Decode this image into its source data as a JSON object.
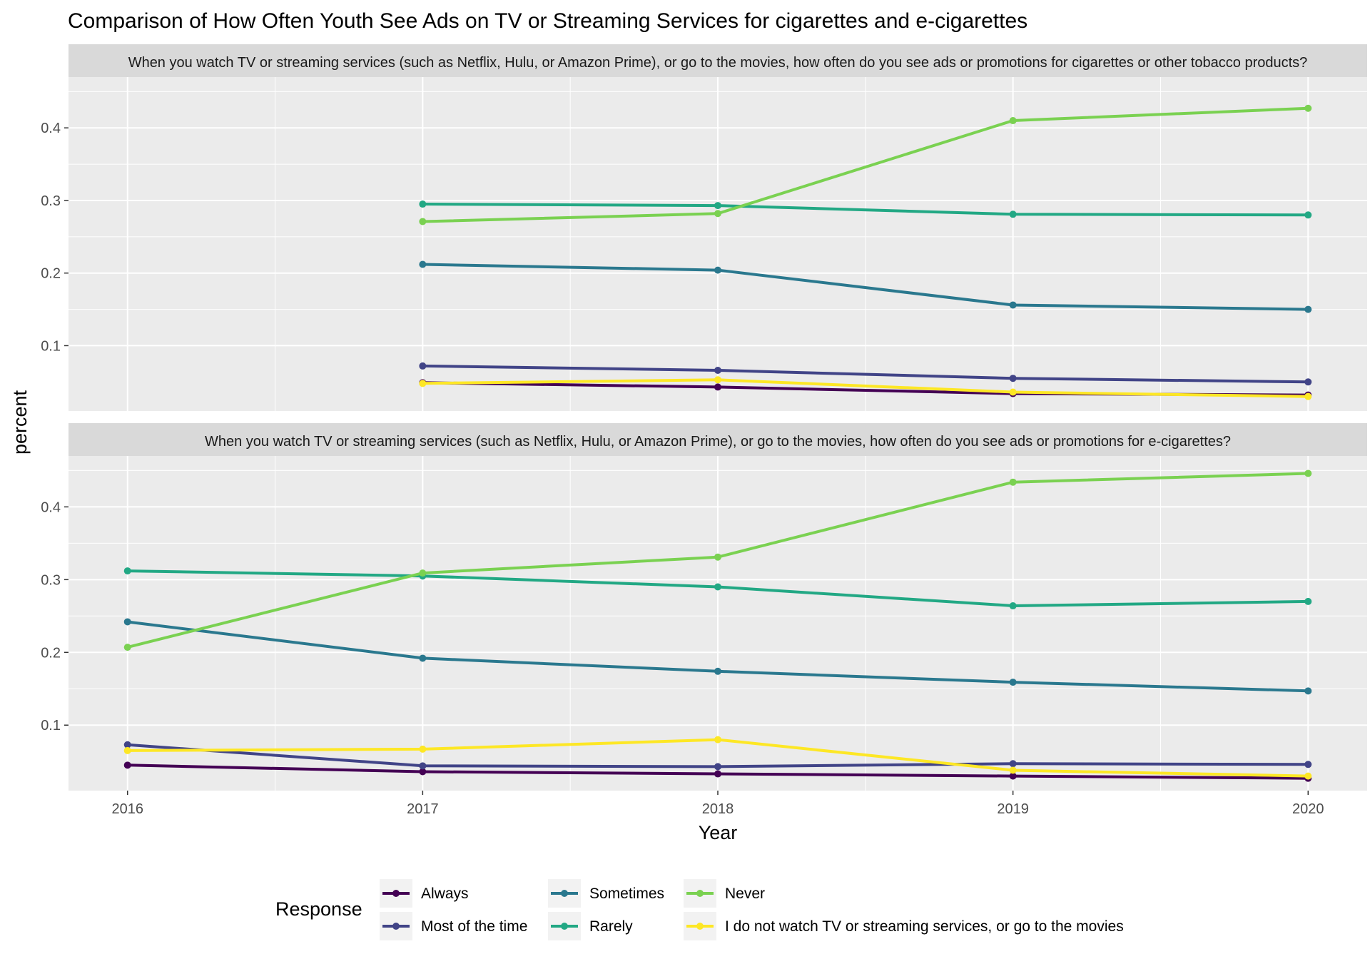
{
  "chart_data": {
    "type": "line",
    "title": "Comparison of How Often Youth See Ads on TV or Streaming Services for cigarettes and e-cigarettes",
    "xlabel": "Year",
    "ylabel": "percent",
    "x": [
      2016,
      2017,
      2018,
      2019,
      2020
    ],
    "xlim": [
      2015.8,
      2020.2
    ],
    "ylim": [
      0.01,
      0.47
    ],
    "y_ticks": [
      "0.1",
      "0.2",
      "0.3",
      "0.4"
    ],
    "grid": true,
    "legend": {
      "title": "Response",
      "position": "bottom",
      "entries": [
        {
          "label": "Always",
          "color": "#440154"
        },
        {
          "label": "Most of the time",
          "color": "#414487"
        },
        {
          "label": "Sometimes",
          "color": "#2A788E"
        },
        {
          "label": "Rarely",
          "color": "#22A884"
        },
        {
          "label": "Never",
          "color": "#7AD151"
        },
        {
          "label": "I do not watch TV or streaming services, or go to the movies",
          "color": "#FDE725"
        }
      ]
    },
    "panels": [
      {
        "strip": "When you watch TV or streaming services (such as Netflix, Hulu, or Amazon Prime), or go to the movies, how often do you see ads or promotions for cigarettes or other tobacco products?",
        "series": [
          {
            "name": "Always",
            "color": "#440154",
            "x": [
              2017,
              2018,
              2019,
              2020
            ],
            "values": [
              0.049,
              0.043,
              0.034,
              0.032
            ]
          },
          {
            "name": "Most of the time",
            "color": "#414487",
            "x": [
              2017,
              2018,
              2019,
              2020
            ],
            "values": [
              0.072,
              0.066,
              0.055,
              0.05
            ]
          },
          {
            "name": "Sometimes",
            "color": "#2A788E",
            "x": [
              2017,
              2018,
              2019,
              2020
            ],
            "values": [
              0.212,
              0.204,
              0.156,
              0.15
            ]
          },
          {
            "name": "Rarely",
            "color": "#22A884",
            "x": [
              2017,
              2018,
              2019,
              2020
            ],
            "values": [
              0.295,
              0.293,
              0.281,
              0.28
            ]
          },
          {
            "name": "Never",
            "color": "#7AD151",
            "x": [
              2017,
              2018,
              2019,
              2020
            ],
            "values": [
              0.271,
              0.282,
              0.41,
              0.427
            ]
          },
          {
            "name": "I do not watch TV or streaming services, or go to the movies",
            "color": "#FDE725",
            "x": [
              2017,
              2018,
              2019,
              2020
            ],
            "values": [
              0.048,
              0.053,
              0.036,
              0.03
            ]
          }
        ]
      },
      {
        "strip": "When you watch TV or streaming services (such as Netflix, Hulu, or Amazon Prime), or go to the movies, how often do you see ads or promotions for e-cigarettes?",
        "series": [
          {
            "name": "Always",
            "color": "#440154",
            "x": [
              2016,
              2017,
              2018,
              2019,
              2020
            ],
            "values": [
              0.045,
              0.036,
              0.033,
              0.03,
              0.027
            ]
          },
          {
            "name": "Most of the time",
            "color": "#414487",
            "x": [
              2016,
              2017,
              2018,
              2019,
              2020
            ],
            "values": [
              0.073,
              0.044,
              0.043,
              0.047,
              0.046
            ]
          },
          {
            "name": "Sometimes",
            "color": "#2A788E",
            "x": [
              2016,
              2017,
              2018,
              2019,
              2020
            ],
            "values": [
              0.242,
              0.192,
              0.174,
              0.159,
              0.147
            ]
          },
          {
            "name": "Rarely",
            "color": "#22A884",
            "x": [
              2016,
              2017,
              2018,
              2019,
              2020
            ],
            "values": [
              0.312,
              0.305,
              0.29,
              0.264,
              0.27
            ]
          },
          {
            "name": "Never",
            "color": "#7AD151",
            "x": [
              2016,
              2017,
              2018,
              2019,
              2020
            ],
            "values": [
              0.207,
              0.309,
              0.331,
              0.434,
              0.446
            ]
          },
          {
            "name": "I do not watch TV or streaming services, or go to the movies",
            "color": "#FDE725",
            "x": [
              2016,
              2017,
              2018,
              2019,
              2020
            ],
            "values": [
              0.065,
              0.067,
              0.08,
              0.038,
              0.03
            ]
          }
        ]
      }
    ]
  }
}
